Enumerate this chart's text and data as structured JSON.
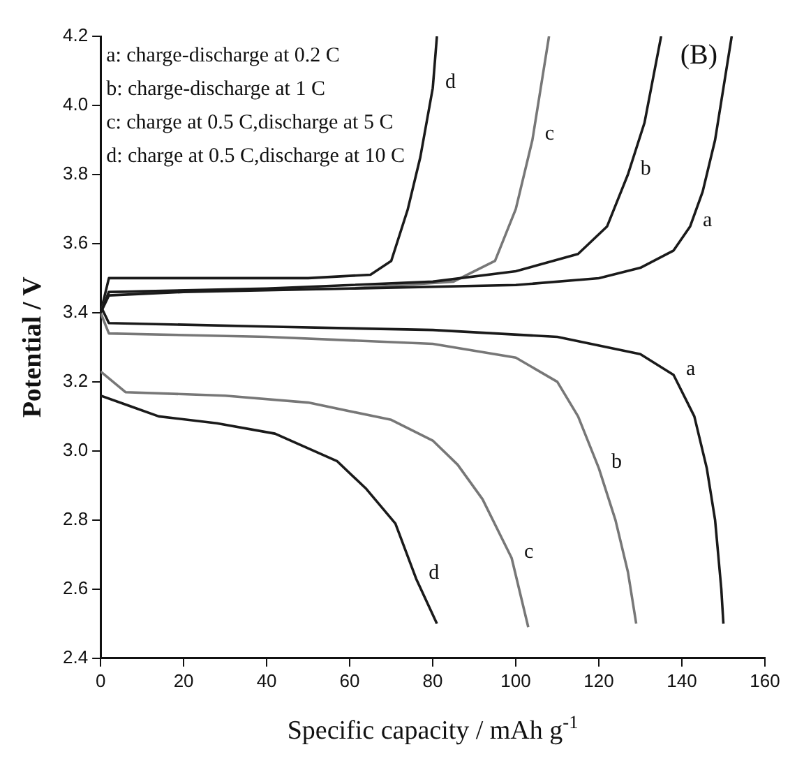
{
  "chart_data": {
    "type": "line",
    "title": "(B)",
    "xlabel": "Specific capacity / mAh g$^{-1}$",
    "ylabel": "Potential / V",
    "xlim": [
      0,
      160
    ],
    "xticks": [
      0,
      20,
      40,
      60,
      80,
      100,
      120,
      140,
      160
    ],
    "ylim": [
      2.4,
      4.2
    ],
    "yticks": [
      2.4,
      2.6,
      2.8,
      {
        "value": 3,
        "label": "3.0"
      },
      3.2,
      3.4,
      3.6,
      3.8,
      {
        "value": 4,
        "label": "4.0"
      },
      4.2
    ],
    "grid": false,
    "legend": false,
    "marker": "none",
    "line_style": "solid",
    "series": [
      {
        "color": "#1a1a1a",
        "x": [
          0,
          2,
          20,
          60,
          100,
          120,
          130,
          138,
          142,
          145,
          148,
          150,
          152
        ],
        "values": [
          3.4,
          3.45,
          3.46,
          3.47,
          3.48,
          3.5,
          3.53,
          3.58,
          3.65,
          3.75,
          3.9,
          4.05,
          4.2
        ]
      },
      {
        "color": "#1a1a1a",
        "x": [
          0,
          2,
          40,
          80,
          100,
          115,
          122,
          127,
          131,
          135
        ],
        "values": [
          3.4,
          3.46,
          3.47,
          3.49,
          3.52,
          3.57,
          3.65,
          3.8,
          3.95,
          4.2
        ]
      },
      {
        "color": "#777777",
        "x": [
          0,
          2,
          60,
          85,
          95,
          100,
          104,
          108
        ],
        "values": [
          3.4,
          3.46,
          3.47,
          3.49,
          3.55,
          3.7,
          3.9,
          4.2
        ]
      },
      {
        "color": "#1a1a1a",
        "x": [
          0,
          2,
          20,
          50,
          65,
          70,
          74,
          77,
          80,
          81
        ],
        "values": [
          3.4,
          3.5,
          3.5,
          3.5,
          3.51,
          3.55,
          3.7,
          3.85,
          4.05,
          4.2
        ]
      },
      {
        "color": "#1a1a1a",
        "x": [
          0,
          2,
          40,
          80,
          110,
          130,
          138,
          143,
          146,
          148,
          149.5,
          150
        ],
        "values": [
          3.42,
          3.37,
          3.36,
          3.35,
          3.33,
          3.28,
          3.22,
          3.1,
          2.95,
          2.8,
          2.6,
          2.5
        ]
      },
      {
        "color": "#777777",
        "x": [
          0,
          2,
          40,
          80,
          100,
          110,
          115,
          120,
          124,
          127,
          129
        ],
        "values": [
          3.4,
          3.34,
          3.33,
          3.31,
          3.27,
          3.2,
          3.1,
          2.95,
          2.8,
          2.65,
          2.5
        ]
      },
      {
        "color": "#777777",
        "x": [
          0,
          6,
          30,
          50,
          70,
          80,
          86,
          92,
          99,
          103
        ],
        "values": [
          3.23,
          3.17,
          3.16,
          3.14,
          3.09,
          3.03,
          2.96,
          2.86,
          2.69,
          2.49
        ]
      },
      {
        "color": "#1a1a1a",
        "x": [
          0,
          7,
          14,
          28,
          42,
          57,
          64,
          71,
          76,
          81
        ],
        "values": [
          3.16,
          3.13,
          3.1,
          3.08,
          3.05,
          2.97,
          2.89,
          2.79,
          2.63,
          2.5
        ]
      }
    ],
    "annotations": [
      "a: charge-discharge at 0.2 C",
      "b: charge-discharge at 1 C",
      "c: charge at 0.5 C,discharge at 5 C",
      "d: charge at 0.5 C,discharge at 10 C",
      {
        "text": "d",
        "x": 80,
        "y": 4.05
      },
      {
        "text": "c",
        "x": 104,
        "y": 3.9
      },
      {
        "text": "b",
        "x": 127,
        "y": 3.8
      },
      {
        "text": "a",
        "x": 142,
        "y": 3.65
      },
      {
        "text": "a",
        "x": 138,
        "y": 3.22
      },
      {
        "text": "b",
        "x": 120,
        "y": 2.95
      },
      {
        "text": "c",
        "x": 99,
        "y": 2.69
      },
      {
        "text": "d",
        "x": 76,
        "y": 2.63
      }
    ]
  }
}
